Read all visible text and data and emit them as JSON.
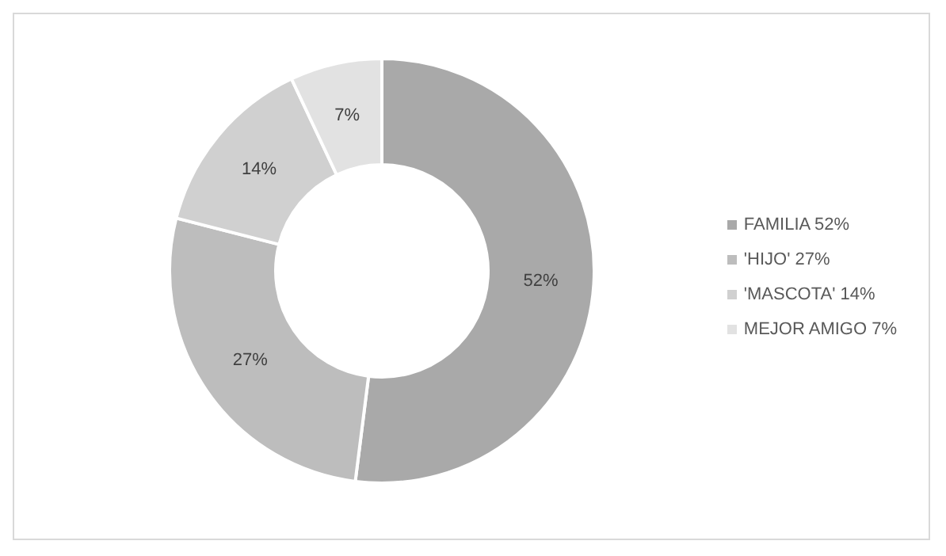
{
  "chart_data": {
    "type": "donut",
    "categories": [
      "FAMILIA 52%",
      "'HIJO' 27%",
      "'MASCOTA' 14%",
      "MEJOR AMIGO 7%"
    ],
    "values": [
      52,
      27,
      14,
      7
    ],
    "value_labels": [
      "52%",
      "27%",
      "14%",
      "7%"
    ],
    "colors": [
      "#a9a9a9",
      "#bdbdbd",
      "#d0d0d0",
      "#e2e2e2"
    ],
    "legend": "right"
  }
}
